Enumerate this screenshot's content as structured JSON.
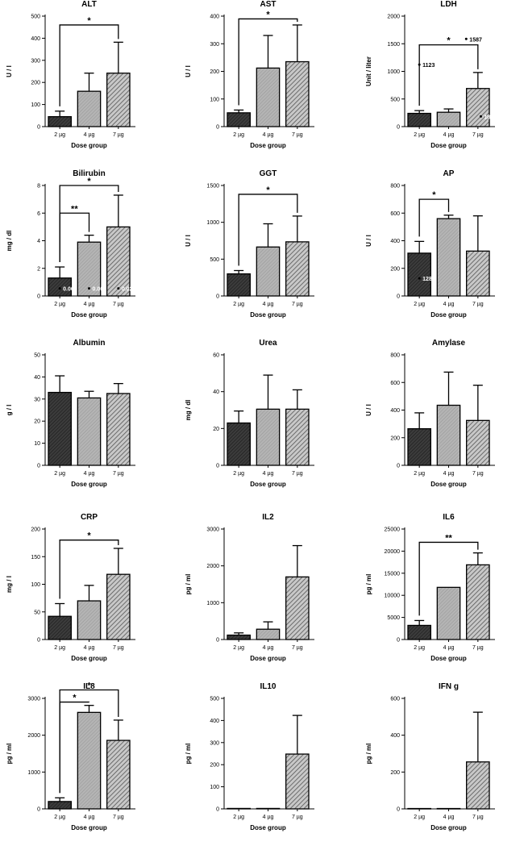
{
  "colors": {
    "dark": "#3c3c3c",
    "light": "#b4b4b4",
    "mid": "#6e6e6e",
    "axis": "#000000"
  },
  "chart_data": [
    {
      "type": "bar",
      "title": "ALT",
      "ylabel": "U / l",
      "xlabel": "Dose group",
      "categories": [
        "2 µg",
        "4 µg",
        "7 µg"
      ],
      "values": [
        45,
        160,
        242
      ],
      "errors": [
        25,
        82,
        140
      ],
      "ylim": [
        0,
        500
      ],
      "yticks": [
        0,
        100,
        200,
        300,
        400,
        500
      ],
      "significance": [
        {
          "from": 0,
          "to": 2,
          "label": "*",
          "level": 460
        }
      ],
      "annotations": []
    },
    {
      "type": "bar",
      "title": "AST",
      "ylabel": "U / l",
      "xlabel": "Dose group",
      "categories": [
        "2 µg",
        "4 µg",
        "7 µg"
      ],
      "values": [
        50,
        212,
        235
      ],
      "errors": [
        10,
        118,
        133
      ],
      "ylim": [
        0,
        400
      ],
      "yticks": [
        0,
        100,
        200,
        300,
        400
      ],
      "significance": [
        {
          "from": 0,
          "to": 2,
          "label": "*",
          "level": 390
        }
      ],
      "annotations": []
    },
    {
      "type": "bar",
      "title": "LDH",
      "ylabel": "Unit / liter",
      "xlabel": "Dose group",
      "categories": [
        "2 µg",
        "4 µg",
        "7 µg"
      ],
      "values": [
        240,
        260,
        690
      ],
      "errors": [
        50,
        60,
        290
      ],
      "ylim": [
        0,
        2000
      ],
      "yticks": [
        0,
        500,
        1000,
        1500,
        2000
      ],
      "significance": [
        {
          "from": 0,
          "to": 2,
          "label": "*",
          "level": 1480
        }
      ],
      "annotations": [
        {
          "cat": 0,
          "y": 1123,
          "label": "1123",
          "labelColor": "#000000"
        },
        {
          "cat": 1.6,
          "y": 1587,
          "label": "1587",
          "labelColor": "#000000"
        },
        {
          "cat": 2.1,
          "y": 185,
          "label": "185",
          "labelColor": "#ffffff"
        }
      ]
    },
    {
      "type": "bar",
      "title": "Bilirubin",
      "ylabel": "mg / dl",
      "xlabel": "Dose group",
      "categories": [
        "2 µg",
        "4 µg",
        "7 µg"
      ],
      "values": [
        1.3,
        3.9,
        5.0
      ],
      "errors": [
        0.8,
        0.5,
        2.3
      ],
      "ylim": [
        0,
        8
      ],
      "yticks": [
        0,
        2,
        4,
        6,
        8
      ],
      "significance": [
        {
          "from": 0,
          "to": 1,
          "label": "**",
          "level": 6.0
        },
        {
          "from": 0,
          "to": 2,
          "label": "*",
          "level": 8.0
        }
      ],
      "annotations": [
        {
          "cat": 0,
          "y": 0.55,
          "label": "0.06",
          "labelColor": "#ffffff"
        },
        {
          "cat": 1,
          "y": 0.55,
          "label": "0.06",
          "labelColor": "#ffffff"
        },
        {
          "cat": 2,
          "y": 0.55,
          "label": "0.02",
          "labelColor": "#ffffff"
        }
      ]
    },
    {
      "type": "bar",
      "title": "GGT",
      "ylabel": "U / l",
      "xlabel": "Dose group",
      "categories": [
        "2 µg",
        "4 µg",
        "7 µg"
      ],
      "values": [
        300,
        665,
        735
      ],
      "errors": [
        45,
        315,
        350
      ],
      "ylim": [
        0,
        1500
      ],
      "yticks": [
        0,
        500,
        1000,
        1500
      ],
      "significance": [
        {
          "from": 0,
          "to": 2,
          "label": "*",
          "level": 1380
        }
      ],
      "annotations": []
    },
    {
      "type": "bar",
      "title": "AP",
      "ylabel": "U / l",
      "xlabel": "Dose group",
      "categories": [
        "2 µg",
        "4 µg",
        "7 µg"
      ],
      "values": [
        310,
        560,
        325
      ],
      "errors": [
        85,
        25,
        255
      ],
      "ylim": [
        0,
        800
      ],
      "yticks": [
        0,
        200,
        400,
        600,
        800
      ],
      "significance": [
        {
          "from": 0,
          "to": 1,
          "label": "*",
          "level": 700
        }
      ],
      "annotations": [
        {
          "cat": 0,
          "y": 128,
          "label": "128",
          "labelColor": "#ffffff"
        }
      ]
    },
    {
      "type": "bar",
      "title": "Albumin",
      "ylabel": "g / l",
      "xlabel": "Dose group",
      "categories": [
        "2 µg",
        "4 µg",
        "7 µg"
      ],
      "values": [
        33,
        30.5,
        32.5
      ],
      "errors": [
        7.5,
        3,
        4.5
      ],
      "ylim": [
        0,
        50
      ],
      "yticks": [
        0,
        10,
        20,
        30,
        40,
        50
      ],
      "significance": [],
      "annotations": []
    },
    {
      "type": "bar",
      "title": "Urea",
      "ylabel": "mg / dl",
      "xlabel": "Dose group",
      "categories": [
        "2 µg",
        "4 µg",
        "7 µg"
      ],
      "values": [
        23,
        30.5,
        30.5
      ],
      "errors": [
        6.5,
        18.5,
        10.5
      ],
      "ylim": [
        0,
        60
      ],
      "yticks": [
        0,
        20,
        40,
        60
      ],
      "significance": [],
      "annotations": []
    },
    {
      "type": "bar",
      "title": "Amylase",
      "ylabel": "U / l",
      "xlabel": "Dose group",
      "categories": [
        "2 µg",
        "4 µg",
        "7 µg"
      ],
      "values": [
        265,
        435,
        325
      ],
      "errors": [
        115,
        240,
        255
      ],
      "ylim": [
        0,
        800
      ],
      "yticks": [
        0,
        200,
        400,
        600,
        800
      ],
      "significance": [],
      "annotations": []
    },
    {
      "type": "bar",
      "title": "CRP",
      "ylabel": "mg / l",
      "xlabel": "Dose group",
      "categories": [
        "2 µg",
        "4 µg",
        "7 µg"
      ],
      "values": [
        42,
        70,
        118
      ],
      "errors": [
        23,
        28,
        47
      ],
      "ylim": [
        0,
        200
      ],
      "yticks": [
        0,
        50,
        100,
        150,
        200
      ],
      "significance": [
        {
          "from": 0,
          "to": 2,
          "label": "*",
          "level": 180
        }
      ],
      "annotations": []
    },
    {
      "type": "bar",
      "title": "IL2",
      "ylabel": "pg / ml",
      "xlabel": "Dose group",
      "categories": [
        "2 µg",
        "4 µg",
        "7 µg"
      ],
      "values": [
        120,
        280,
        1700
      ],
      "errors": [
        60,
        200,
        850
      ],
      "ylim": [
        0,
        3000
      ],
      "yticks": [
        0,
        1000,
        2000,
        3000
      ],
      "significance": [],
      "annotations": []
    },
    {
      "type": "bar",
      "title": "IL6",
      "ylabel": "pg / ml",
      "xlabel": "Dose group",
      "categories": [
        "2 µg",
        "4 µg",
        "7 µg"
      ],
      "values": [
        3200,
        11800,
        16900
      ],
      "errors": [
        1100,
        0,
        2700
      ],
      "ylim": [
        0,
        25000
      ],
      "yticks": [
        0,
        5000,
        10000,
        15000,
        20000,
        25000
      ],
      "significance": [
        {
          "from": 0,
          "to": 2,
          "label": "**",
          "level": 22000
        }
      ],
      "annotations": []
    },
    {
      "type": "bar",
      "title": "IL8",
      "ylabel": "pg / ml",
      "xlabel": "Dose group",
      "categories": [
        "2 µg",
        "4 µg",
        "7 µg"
      ],
      "values": [
        200,
        2620,
        1860
      ],
      "errors": [
        100,
        190,
        550
      ],
      "ylim": [
        0,
        3000
      ],
      "yticks": [
        0,
        1000,
        2000,
        3000
      ],
      "significance": [
        {
          "from": 0,
          "to": 1,
          "label": "*",
          "level": 2900
        },
        {
          "from": 0,
          "to": 2,
          "label": "*",
          "level": 3230
        }
      ],
      "annotations": []
    },
    {
      "type": "bar",
      "title": "IL10",
      "ylabel": "pg / ml",
      "xlabel": "Dose group",
      "categories": [
        "2 µg",
        "4 µg",
        "7 µg"
      ],
      "values": [
        2,
        2,
        248
      ],
      "errors": [
        0,
        0,
        175
      ],
      "ylim": [
        0,
        500
      ],
      "yticks": [
        0,
        100,
        200,
        300,
        400,
        500
      ],
      "significance": [],
      "annotations": []
    },
    {
      "type": "bar",
      "title": "IFN g",
      "ylabel": "pg / ml",
      "xlabel": "Dose group",
      "categories": [
        "2 µg",
        "4 µg",
        "7 µg"
      ],
      "values": [
        2,
        2,
        255
      ],
      "errors": [
        0,
        0,
        270
      ],
      "ylim": [
        0,
        600
      ],
      "yticks": [
        0,
        200,
        400,
        600
      ],
      "significance": [],
      "annotations": []
    }
  ]
}
